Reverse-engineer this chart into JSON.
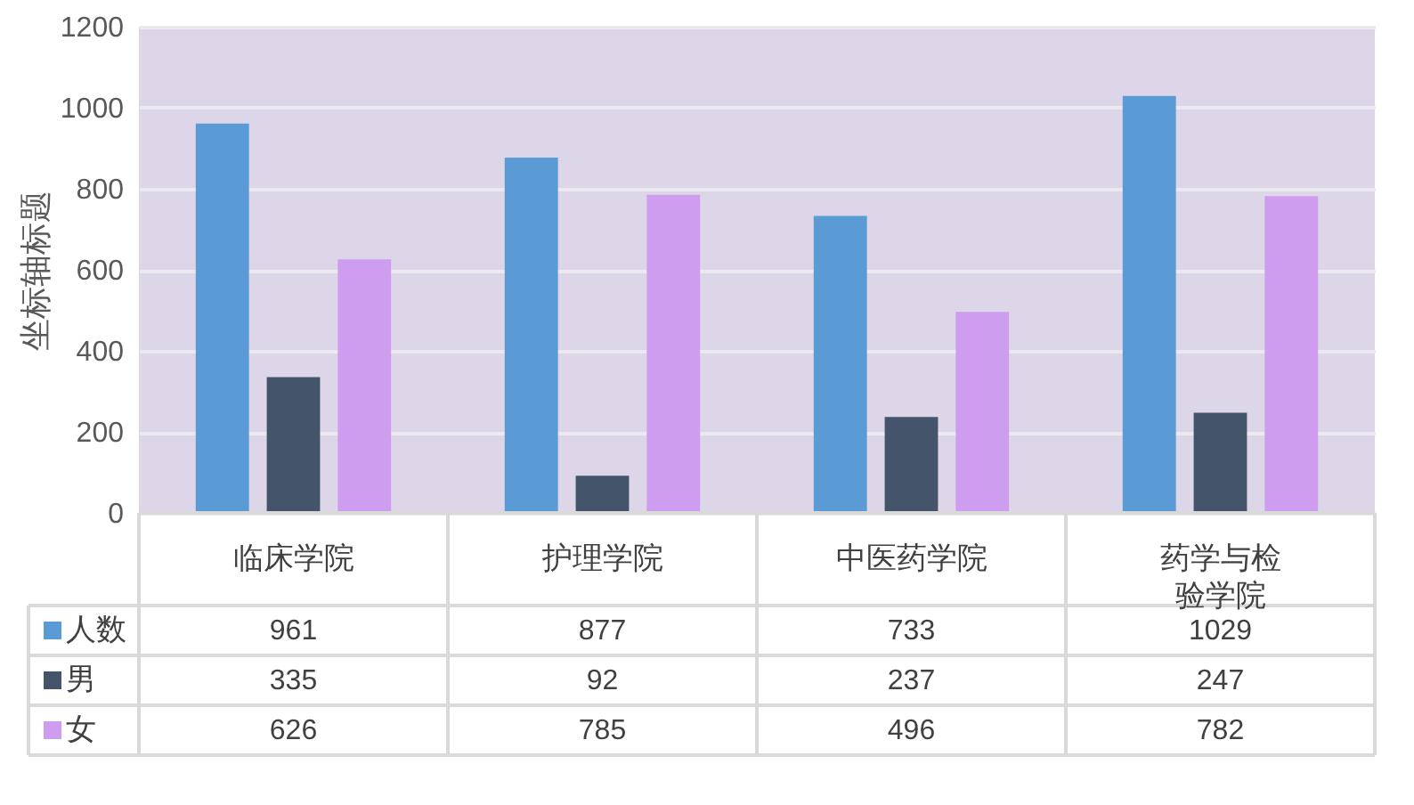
{
  "chart_data": {
    "type": "bar",
    "ylabel": "坐标轴标题",
    "categories": [
      "临床学院",
      "护理学院",
      "中医药学院",
      "药学与检验学院"
    ],
    "series": [
      {
        "name": "人数",
        "color": "#5b9bd5",
        "values": [
          961,
          877,
          733,
          1029
        ]
      },
      {
        "name": "男",
        "color": "#44546a",
        "values": [
          335,
          92,
          237,
          247
        ]
      },
      {
        "name": "女",
        "color": "#cf9df0",
        "values": [
          626,
          785,
          496,
          782
        ]
      }
    ],
    "ylim": [
      0,
      1200
    ],
    "yticks": [
      0,
      200,
      400,
      600,
      800,
      1000,
      1200
    ],
    "grid": "y",
    "data_labels": true,
    "legend": "bottom left"
  }
}
